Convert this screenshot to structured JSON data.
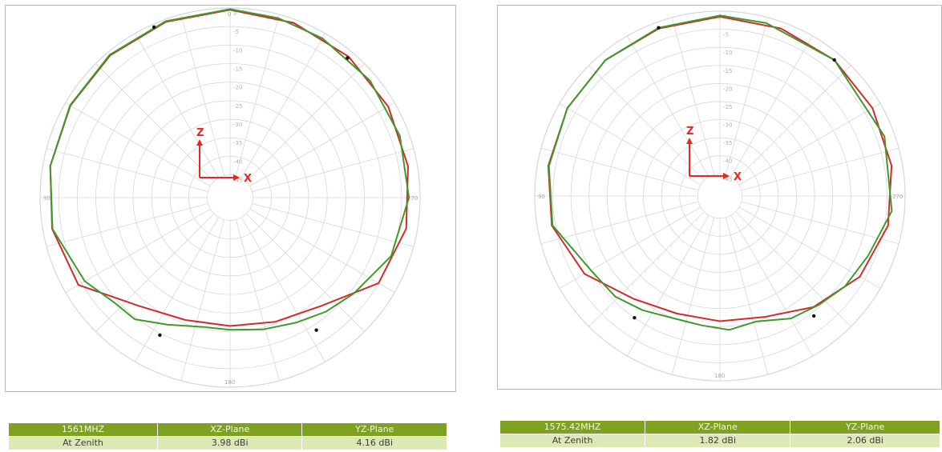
{
  "chart_data": [
    {
      "type": "polar-line",
      "radial_ticks": [
        "0",
        "-5",
        "-10",
        "-15",
        "-20",
        "-25",
        "-30",
        "-35",
        "-40",
        "-45"
      ],
      "angle_labels": {
        "top": "0",
        "left": "90",
        "right": "270",
        "bottom": "180"
      },
      "axes_indicator": {
        "z_label": "Z",
        "x_label": "X",
        "color": "#e8281e"
      },
      "series": [
        {
          "color": "#d42a2a",
          "points": [
            [
              0,
              -0.5
            ],
            [
              20,
              -0.7
            ],
            [
              40,
              -1
            ],
            [
              60,
              -1.5
            ],
            [
              80,
              -2
            ],
            [
              100,
              -2.5
            ],
            [
              120,
              -4
            ],
            [
              140,
              -13
            ],
            [
              160,
              -16
            ],
            [
              180,
              -16.5
            ],
            [
              200,
              -15.5
            ],
            [
              220,
              -13
            ],
            [
              240,
              -5
            ],
            [
              260,
              -3
            ],
            [
              280,
              -2.5
            ],
            [
              300,
              -2
            ],
            [
              320,
              -1.5
            ],
            [
              340,
              -1
            ],
            [
              360,
              -0.5
            ]
          ]
        },
        {
          "color": "#3e9a2c",
          "points": [
            [
              0,
              -0.3
            ],
            [
              20,
              -0.5
            ],
            [
              40,
              -0.8
            ],
            [
              60,
              -1.4
            ],
            [
              80,
              -2
            ],
            [
              100,
              -2.6
            ],
            [
              120,
              -6
            ],
            [
              132,
              -9
            ],
            [
              142,
              -9.5
            ],
            [
              154,
              -13
            ],
            [
              168,
              -15.5
            ],
            [
              180,
              -15.5
            ],
            [
              194,
              -14.5
            ],
            [
              208,
              -13
            ],
            [
              220,
              -11
            ],
            [
              232,
              -9
            ],
            [
              250,
              -5
            ],
            [
              270,
              -3
            ],
            [
              290,
              -2.5
            ],
            [
              310,
              -2
            ],
            [
              330,
              -1.5
            ],
            [
              345,
              -1
            ],
            [
              360,
              -0.3
            ]
          ]
        }
      ],
      "markers": [
        [
          24,
          -0.8
        ],
        [
          153,
          -9.5
        ],
        [
          213,
          -8.5
        ],
        [
          320,
          -2
        ]
      ]
    },
    {
      "type": "polar-line",
      "radial_ticks": [
        "0",
        "-5",
        "-10",
        "-15",
        "-20",
        "-25",
        "-30",
        "-35",
        "-40",
        "-45"
      ],
      "angle_labels": {
        "top": "0",
        "left": "90",
        "right": "270",
        "bottom": "180"
      },
      "axes_indicator": {
        "z_label": "Z",
        "x_label": "X",
        "color": "#e8281e"
      },
      "series": [
        {
          "color": "#d42a2a",
          "points": [
            [
              0,
              -1.5
            ],
            [
              20,
              -1.8
            ],
            [
              40,
              -2
            ],
            [
              60,
              -2.5
            ],
            [
              80,
              -3
            ],
            [
              100,
              -4
            ],
            [
              120,
              -8
            ],
            [
              140,
              -14
            ],
            [
              160,
              -16.5
            ],
            [
              180,
              -16.5
            ],
            [
              200,
              -15.5
            ],
            [
              220,
              -11
            ],
            [
              240,
              -6.5
            ],
            [
              260,
              -4
            ],
            [
              280,
              -3
            ],
            [
              300,
              -2.5
            ],
            [
              320,
              -2
            ],
            [
              340,
              -1.8
            ],
            [
              360,
              -1.5
            ]
          ]
        },
        {
          "color": "#3e9a2c",
          "points": [
            [
              0,
              -1.2
            ],
            [
              20,
              -1.6
            ],
            [
              40,
              -2
            ],
            [
              60,
              -2.5
            ],
            [
              80,
              -3.2
            ],
            [
              100,
              -4.2
            ],
            [
              120,
              -10
            ],
            [
              134,
              -11
            ],
            [
              146,
              -13
            ],
            [
              160,
              -15
            ],
            [
              172,
              -15
            ],
            [
              184,
              -14
            ],
            [
              196,
              -15
            ],
            [
              210,
              -12
            ],
            [
              222,
              -10.5
            ],
            [
              234,
              -8.5
            ],
            [
              248,
              -7
            ],
            [
              265,
              -3.5
            ],
            [
              290,
              -2.8
            ],
            [
              320,
              -2
            ],
            [
              345,
              -1.6
            ],
            [
              360,
              -1.2
            ]
          ]
        }
      ],
      "markers": [
        [
          20,
          -1.6
        ],
        [
          145,
          -10
        ],
        [
          218,
          -9
        ],
        [
          320,
          -2
        ]
      ]
    }
  ],
  "tables": [
    {
      "headers": [
        "1561MHZ",
        "XZ-Plane",
        "YZ-Plane"
      ],
      "row": [
        "At Zenith",
        "3.98 dBi",
        "4.16 dBi"
      ]
    },
    {
      "headers": [
        "1575.42MHZ",
        "XZ-Plane",
        "YZ-Plane"
      ],
      "row": [
        "At Zenith",
        "1.82 dBi",
        "2.06 dBi"
      ]
    }
  ]
}
